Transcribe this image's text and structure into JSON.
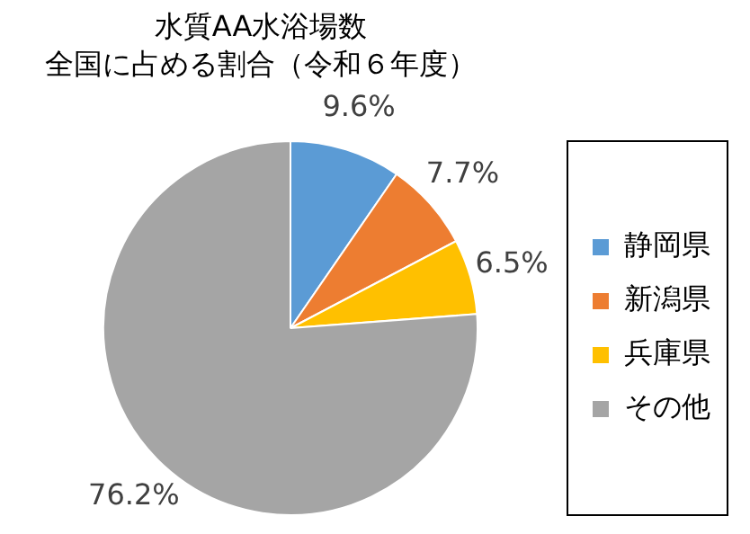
{
  "chart_data": {
    "type": "pie",
    "title": "水質AA水浴場数",
    "subtitle": "全国に占める割合（令和６年度）",
    "categories": [
      "静岡県",
      "新潟県",
      "兵庫県",
      "その他"
    ],
    "values": [
      9.6,
      7.7,
      6.5,
      76.2
    ],
    "colors": [
      "#5b9bd5",
      "#ed7d31",
      "#ffc000",
      "#a5a5a5"
    ],
    "value_labels": [
      "9.6%",
      "7.7%",
      "6.5%",
      "76.2%"
    ],
    "legend": "right"
  }
}
